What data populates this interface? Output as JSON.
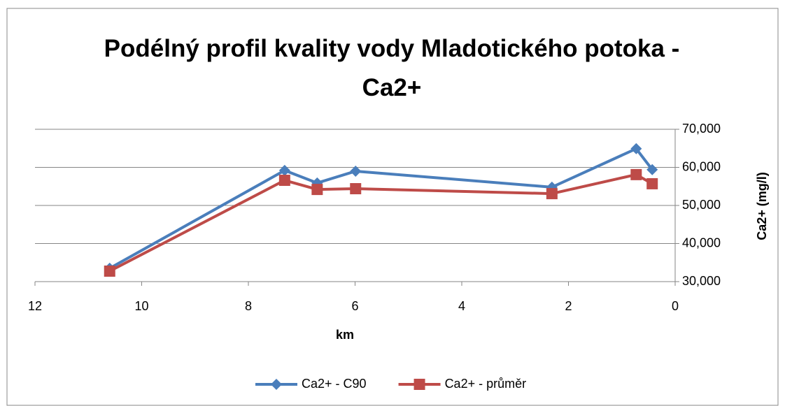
{
  "chart_data": {
    "type": "line",
    "title": "Podélný profil kvality vody Mladotického potoka - Ca2+",
    "x_label": "km",
    "y_label": "Ca2+ (mg/l)",
    "x": [
      10.6,
      7.32,
      6.71,
      5.99,
      2.31,
      0.73,
      0.43
    ],
    "series": [
      {
        "name": "Ca2+ - C90",
        "color": "#4a7ebb",
        "marker": "diamond",
        "values": [
          33500,
          59200,
          55900,
          59000,
          54800,
          64900,
          59400
        ]
      },
      {
        "name": "Ca2+ - průměr",
        "color": "#be4b48",
        "marker": "square",
        "values": [
          32750,
          56600,
          54200,
          54400,
          53100,
          58100,
          55700
        ]
      }
    ],
    "xlim": [
      12,
      0
    ],
    "xticks": [
      12,
      10,
      8,
      6,
      4,
      2,
      0
    ],
    "ylim": [
      30000,
      70000
    ],
    "yticks": [
      {
        "value": 30000,
        "label": "30,000"
      },
      {
        "value": 40000,
        "label": "40,000"
      },
      {
        "value": 50000,
        "label": "50,000"
      },
      {
        "value": 60000,
        "label": "60,000"
      },
      {
        "value": 70000,
        "label": "70,000"
      }
    ],
    "y_axis_side": "right",
    "grid": true,
    "legend": "bottom"
  }
}
